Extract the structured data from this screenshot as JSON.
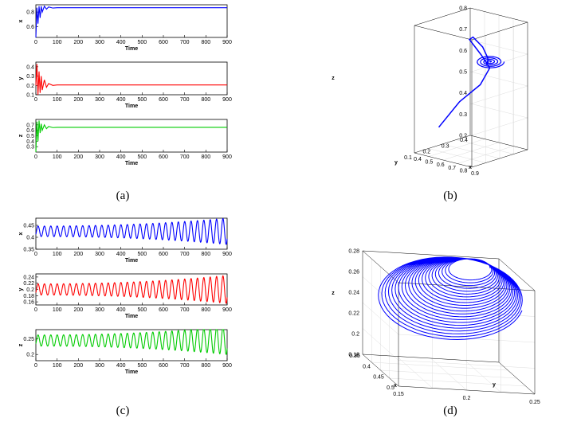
{
  "figure": {
    "labels": [
      "(a)",
      "(b)",
      "(c)",
      "(d)"
    ]
  },
  "chart_data": [
    {
      "id": "a1",
      "type": "line",
      "xlabel": "Time",
      "ylabel": "x",
      "color": "#0000ff",
      "xlim": [
        0,
        900
      ],
      "ylim": [
        0.45,
        0.9
      ],
      "xticks": [
        "0",
        "100",
        "200",
        "300",
        "400",
        "500",
        "600",
        "700",
        "800",
        "900"
      ],
      "yticks": [
        "0.6",
        "0.8"
      ],
      "ytick_values": [
        0.6,
        0.8
      ],
      "series": [
        {
          "name": "x",
          "x": [
            0,
            5,
            10,
            15,
            20,
            25,
            30,
            40,
            50,
            60,
            80,
            100,
            900
          ],
          "y": [
            0.45,
            0.86,
            0.64,
            0.88,
            0.72,
            0.88,
            0.8,
            0.88,
            0.84,
            0.87,
            0.855,
            0.86,
            0.86
          ]
        }
      ]
    },
    {
      "id": "a2",
      "type": "line",
      "xlabel": "Time",
      "ylabel": "y",
      "color": "#ff0000",
      "xlim": [
        0,
        900
      ],
      "ylim": [
        0.1,
        0.45
      ],
      "xticks": [
        "0",
        "100",
        "200",
        "300",
        "400",
        "500",
        "600",
        "700",
        "800",
        "900"
      ],
      "yticks": [
        "0.1",
        "0.2",
        "0.3",
        "0.4"
      ],
      "ytick_values": [
        0.1,
        0.2,
        0.3,
        0.4
      ],
      "series": [
        {
          "name": "y",
          "x": [
            0,
            5,
            10,
            15,
            20,
            25,
            30,
            40,
            50,
            60,
            80,
            100,
            900
          ],
          "y": [
            0.2,
            0.43,
            0.1,
            0.35,
            0.12,
            0.3,
            0.15,
            0.26,
            0.18,
            0.22,
            0.2,
            0.205,
            0.205
          ]
        }
      ]
    },
    {
      "id": "a3",
      "type": "line",
      "xlabel": "Time",
      "ylabel": "z",
      "color": "#00cc00",
      "xlim": [
        0,
        900
      ],
      "ylim": [
        0.2,
        0.8
      ],
      "xticks": [
        "0",
        "100",
        "200",
        "300",
        "400",
        "500",
        "600",
        "700",
        "800",
        "900"
      ],
      "yticks": [
        "0.3",
        "0.4",
        "0.5",
        "0.6",
        "0.7"
      ],
      "ytick_values": [
        0.3,
        0.4,
        0.5,
        0.6,
        0.7
      ],
      "series": [
        {
          "name": "z",
          "x": [
            0,
            5,
            10,
            15,
            20,
            25,
            30,
            40,
            50,
            60,
            80,
            100,
            900
          ],
          "y": [
            0.2,
            0.76,
            0.4,
            0.78,
            0.55,
            0.72,
            0.6,
            0.7,
            0.63,
            0.67,
            0.65,
            0.655,
            0.655
          ]
        }
      ]
    },
    {
      "id": "b",
      "type": "line3d",
      "title": "",
      "xlabel": "x",
      "ylabel": "y",
      "zlabel": "z",
      "color": "#0000ff",
      "xlim": [
        0.4,
        0.9
      ],
      "ylim": [
        0.1,
        0.4
      ],
      "zlim": [
        0.2,
        0.8
      ],
      "xticks": [
        "0.4",
        "0.5",
        "0.6",
        "0.7",
        "0.8",
        "0.9"
      ],
      "yticks": [
        "0.1",
        "0.2",
        "0.3",
        "0.4"
      ],
      "zticks": [
        "0.2",
        "0.3",
        "0.4",
        "0.5",
        "0.6",
        "0.7",
        "0.8"
      ],
      "series": [
        {
          "name": "trajectory",
          "x": [
            0.45,
            0.55,
            0.65,
            0.7,
            0.66,
            0.62,
            0.7,
            0.8,
            0.86,
            0.88,
            0.86,
            0.85,
            0.86
          ],
          "y": [
            0.2,
            0.25,
            0.3,
            0.32,
            0.3,
            0.26,
            0.23,
            0.22,
            0.21,
            0.2,
            0.205,
            0.21,
            0.205
          ],
          "z": [
            0.3,
            0.42,
            0.5,
            0.58,
            0.64,
            0.72,
            0.75,
            0.72,
            0.68,
            0.66,
            0.65,
            0.655,
            0.655
          ]
        }
      ]
    },
    {
      "id": "c1",
      "type": "line",
      "xlabel": "Time",
      "ylabel": "x",
      "color": "#0000ff",
      "xlim": [
        0,
        900
      ],
      "ylim": [
        0.35,
        0.48
      ],
      "xticks": [
        "0",
        "100",
        "200",
        "300",
        "400",
        "500",
        "600",
        "700",
        "800",
        "900"
      ],
      "yticks": [
        "0.35",
        "0.4",
        "0.45"
      ],
      "ytick_values": [
        0.35,
        0.4,
        0.45
      ],
      "oscillation": {
        "center": 0.425,
        "amp_start": 0.022,
        "amp_end": 0.055,
        "cycles": 30
      }
    },
    {
      "id": "c2",
      "type": "line",
      "xlabel": "Time",
      "ylabel": "y",
      "color": "#ff0000",
      "xlim": [
        0,
        900
      ],
      "ylim": [
        0.15,
        0.25
      ],
      "xticks": [
        "0",
        "100",
        "200",
        "300",
        "400",
        "500",
        "600",
        "700",
        "800",
        "900"
      ],
      "yticks": [
        "0.16",
        "0.18",
        "0.2",
        "0.22",
        "0.24"
      ],
      "ytick_values": [
        0.16,
        0.18,
        0.2,
        0.22,
        0.24
      ],
      "oscillation": {
        "center": 0.2,
        "amp_start": 0.018,
        "amp_end": 0.045,
        "cycles": 30
      }
    },
    {
      "id": "c3",
      "type": "line",
      "xlabel": "Time",
      "ylabel": "z",
      "color": "#00cc00",
      "xlim": [
        0,
        900
      ],
      "ylim": [
        0.18,
        0.28
      ],
      "xticks": [
        "0",
        "100",
        "200",
        "300",
        "400",
        "500",
        "600",
        "700",
        "800",
        "900"
      ],
      "yticks": [
        "0.2",
        "0.25"
      ],
      "ytick_values": [
        0.2,
        0.25
      ],
      "oscillation": {
        "center": 0.245,
        "amp_start": 0.018,
        "amp_end": 0.045,
        "cycles": 30
      }
    },
    {
      "id": "d",
      "type": "line3d",
      "title": "",
      "xlabel": "x",
      "ylabel": "y",
      "zlabel": "z",
      "color": "#0000ff",
      "xlim": [
        0.35,
        0.5
      ],
      "ylim": [
        0.15,
        0.25
      ],
      "zlim": [
        0.18,
        0.28
      ],
      "xticks": [
        "0.35",
        "0.4",
        "0.45",
        "0.5"
      ],
      "yticks": [
        "0.25",
        "0.2",
        "0.15"
      ],
      "zticks": [
        "0.18",
        "0.2",
        "0.22",
        "0.24",
        "0.26",
        "0.28"
      ],
      "series": [
        {
          "name": "limit-cycle",
          "loops": 22
        }
      ]
    }
  ]
}
